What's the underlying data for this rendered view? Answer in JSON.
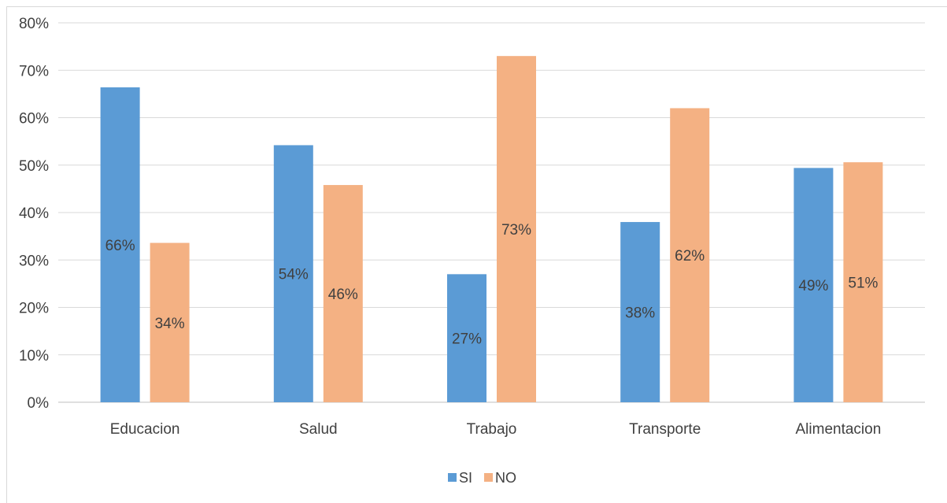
{
  "chart_data": {
    "type": "bar",
    "categories": [
      "Educacion",
      "Salud",
      "Trabajo",
      "Transporte",
      "Alimentacion"
    ],
    "series": [
      {
        "name": "SI",
        "values": [
          0.664,
          0.542,
          0.27,
          0.38,
          0.494
        ],
        "labels": [
          "66%",
          "54%",
          "27%",
          "38%",
          "49%"
        ]
      },
      {
        "name": "NO",
        "values": [
          0.336,
          0.458,
          0.73,
          0.62,
          0.506
        ],
        "labels": [
          "34%",
          "46%",
          "73%",
          "62%",
          "51%"
        ]
      }
    ],
    "ylim": [
      0,
      0.8
    ],
    "yticks": [
      "0%",
      "10%",
      "20%",
      "30%",
      "40%",
      "50%",
      "60%",
      "70%",
      "80%"
    ],
    "grid": true,
    "legend_position": "bottom",
    "colors": {
      "SI": "#5b9bd5",
      "NO": "#f4b183",
      "grid": "#d9d9d9",
      "text": "#404040"
    }
  }
}
